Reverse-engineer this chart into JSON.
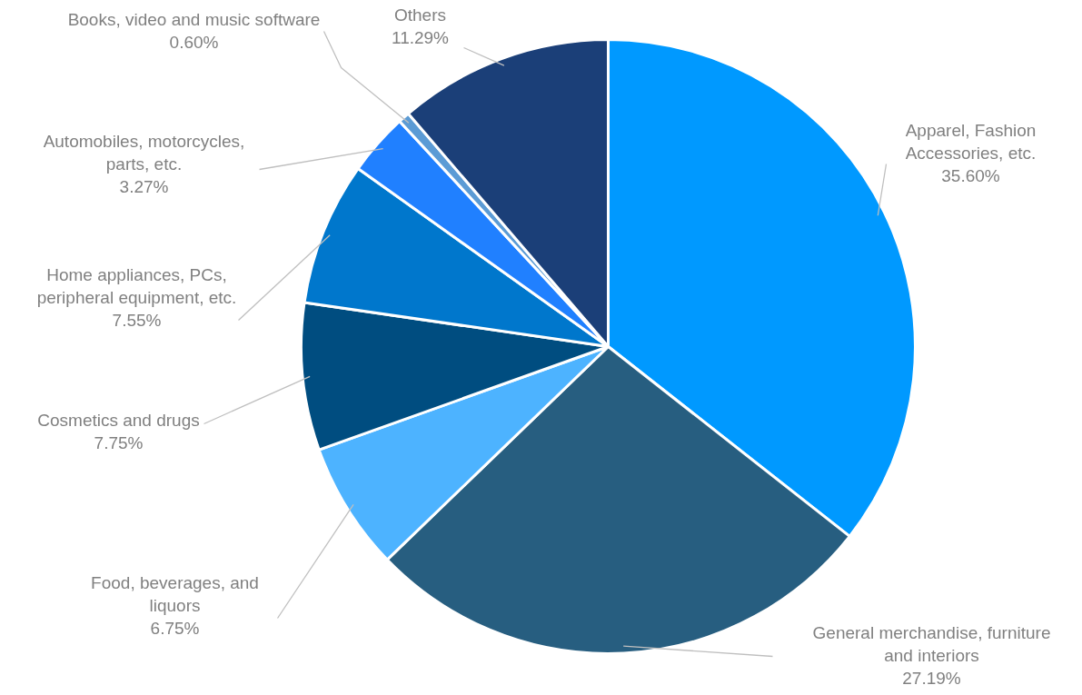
{
  "chart_data": {
    "type": "pie",
    "categories": [
      "Apparel, Fashion Accessories, etc.",
      "General merchandise, furniture and interiors",
      "Food, beverages, and liquors",
      "Cosmetics and drugs",
      "Home appliances, PCs, peripheral equipment, etc.",
      "Automobiles, motorcycles, parts, etc.",
      "Books, video and music software",
      "Others"
    ],
    "values": [
      35.6,
      27.19,
      6.75,
      7.75,
      7.55,
      3.27,
      0.6,
      11.29
    ],
    "value_labels": [
      "35.60%",
      "27.19%",
      "6.75%",
      "7.75%",
      "7.55%",
      "3.27%",
      "0.60%",
      "11.29%"
    ],
    "colors": [
      "#0099ff",
      "#275e80",
      "#4db3ff",
      "#004d80",
      "#0077cc",
      "#2080ff",
      "#5b9bd5",
      "#1b3f78"
    ]
  }
}
